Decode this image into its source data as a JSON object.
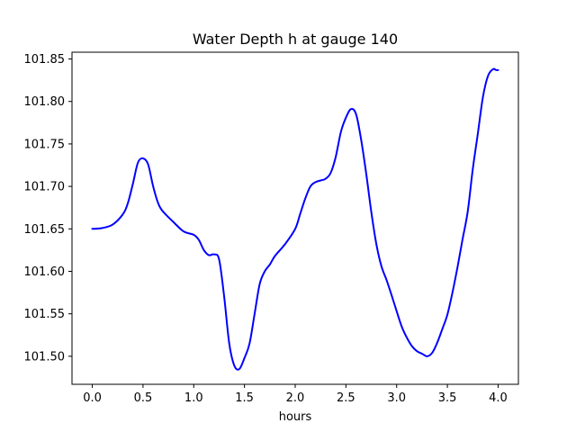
{
  "chart_data": {
    "type": "line",
    "title": "Water Depth h at gauge 140",
    "xlabel": "hours",
    "ylabel": "",
    "xlim": [
      -0.2,
      4.2
    ],
    "ylim": [
      101.467,
      101.858
    ],
    "xticks": [
      0.0,
      0.5,
      1.0,
      1.5,
      2.0,
      2.5,
      3.0,
      3.5,
      4.0
    ],
    "xtick_labels": [
      "0.0",
      "0.5",
      "1.0",
      "1.5",
      "2.0",
      "2.5",
      "3.0",
      "3.5",
      "4.0"
    ],
    "yticks": [
      101.5,
      101.55,
      101.6,
      101.65,
      101.7,
      101.75,
      101.8,
      101.85
    ],
    "ytick_labels": [
      "101.50",
      "101.55",
      "101.60",
      "101.65",
      "101.70",
      "101.75",
      "101.80",
      "101.85"
    ],
    "grid": false,
    "series": [
      {
        "color": "#0000ff",
        "x": [
          0.0,
          0.1,
          0.2,
          0.3,
          0.35,
          0.4,
          0.45,
          0.5,
          0.55,
          0.6,
          0.65,
          0.7,
          0.8,
          0.9,
          1.0,
          1.05,
          1.1,
          1.15,
          1.2,
          1.25,
          1.3,
          1.35,
          1.4,
          1.45,
          1.5,
          1.55,
          1.6,
          1.65,
          1.7,
          1.75,
          1.8,
          1.9,
          2.0,
          2.05,
          2.1,
          2.15,
          2.2,
          2.25,
          2.3,
          2.35,
          2.4,
          2.45,
          2.5,
          2.55,
          2.6,
          2.65,
          2.7,
          2.75,
          2.8,
          2.85,
          2.9,
          2.95,
          3.0,
          3.05,
          3.1,
          3.15,
          3.2,
          3.25,
          3.3,
          3.35,
          3.4,
          3.45,
          3.5,
          3.55,
          3.6,
          3.65,
          3.7,
          3.75,
          3.8,
          3.85,
          3.9,
          3.95,
          3.98,
          4.0
        ],
        "y": [
          101.65,
          101.651,
          101.655,
          101.667,
          101.68,
          101.703,
          101.728,
          101.733,
          101.726,
          101.7,
          101.68,
          101.67,
          101.658,
          101.647,
          101.643,
          101.637,
          101.625,
          101.619,
          101.62,
          101.614,
          101.57,
          101.515,
          101.489,
          101.485,
          101.498,
          101.515,
          101.55,
          101.585,
          101.6,
          101.608,
          101.618,
          101.632,
          101.65,
          101.668,
          101.686,
          101.7,
          101.705,
          101.707,
          101.709,
          101.716,
          101.735,
          101.764,
          101.781,
          101.791,
          101.785,
          101.755,
          101.715,
          101.67,
          101.632,
          101.606,
          101.59,
          101.572,
          101.553,
          101.535,
          101.522,
          101.512,
          101.506,
          101.503,
          101.5,
          101.504,
          101.516,
          101.532,
          101.549,
          101.575,
          101.605,
          101.638,
          101.67,
          101.72,
          101.762,
          101.805,
          101.83,
          101.838,
          101.837,
          101.837
        ]
      }
    ]
  }
}
